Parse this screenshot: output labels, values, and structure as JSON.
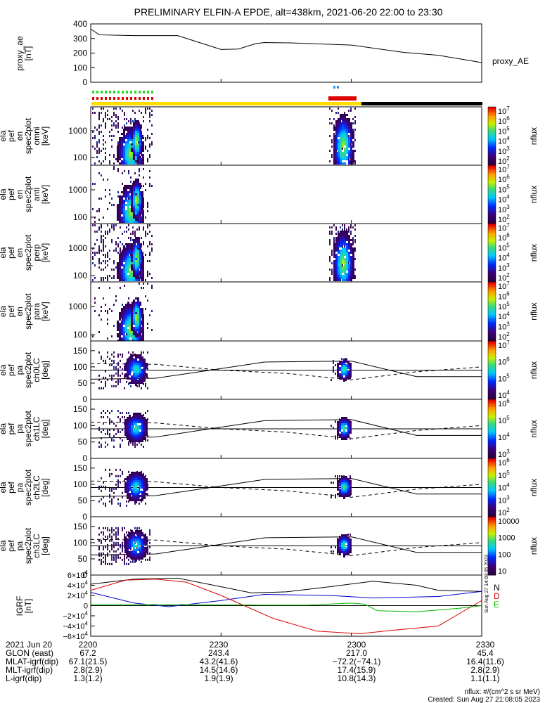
{
  "title": "PRELIMINARY ELFIN-A EPDE, alt=438km, 2021-06-20 22:00 to 23:30",
  "chart_data": [
    {
      "type": "line",
      "ylabel": "proxy_ae [nT]",
      "ylim": [
        0,
        400
      ],
      "yticks": [
        0,
        100,
        200,
        300,
        400
      ],
      "series": [
        {
          "name": "proxy_AE",
          "x": [
            0,
            2,
            10,
            20,
            30,
            34,
            38,
            40,
            46,
            60,
            72,
            80,
            90
          ],
          "values": [
            365,
            325,
            320,
            320,
            225,
            228,
            265,
            272,
            270,
            255,
            205,
            185,
            135
          ]
        }
      ]
    },
    {
      "type": "heatmap",
      "ylabel": "ela pef en spec2plot omni [keV]",
      "yticks": [
        "100",
        "1000"
      ],
      "zlabel": "nflux",
      "zticks": [
        "10^2",
        "10^3",
        "10^4",
        "10^5",
        "10^6",
        "10^7"
      ]
    },
    {
      "type": "heatmap",
      "ylabel": "ela pef en spec2plot anti [keV]",
      "yticks": [
        "100",
        "1000"
      ],
      "zlabel": "nflux",
      "zticks": [
        "10^2",
        "10^3",
        "10^4",
        "10^5",
        "10^6",
        "10^7"
      ]
    },
    {
      "type": "heatmap",
      "ylabel": "ela pef en spec2plot perp [keV]",
      "yticks": [
        "100",
        "1000"
      ],
      "zlabel": "nflux",
      "zticks": [
        "10^2",
        "10^3",
        "10^4",
        "10^5",
        "10^6",
        "10^7"
      ]
    },
    {
      "type": "heatmap",
      "ylabel": "ela pef en spec2plot para [keV]",
      "yticks": [
        "100",
        "1000"
      ],
      "zlabel": "nflux",
      "zticks": [
        "10^2",
        "10^3",
        "10^4",
        "10^5",
        "10^6",
        "10^7"
      ]
    },
    {
      "type": "heatmap",
      "ylabel": "ela pef pa spec2plot ch0LC [deg]",
      "ylim": [
        0,
        180
      ],
      "yticks": [
        0,
        50,
        100,
        150
      ],
      "zlabel": "nflux",
      "zticks": [
        "10^4",
        "10^5",
        "10^6",
        "10^7"
      ]
    },
    {
      "type": "heatmap",
      "ylabel": "ela pef pa spec2plot ch1LC [deg]",
      "ylim": [
        0,
        180
      ],
      "yticks": [
        0,
        50,
        100,
        150
      ],
      "zlabel": "nflux",
      "zticks": [
        "10^3",
        "10^4",
        "10^5",
        "10^6"
      ]
    },
    {
      "type": "heatmap",
      "ylabel": "ela pef pa spec2plot ch2LC [deg]",
      "ylim": [
        0,
        180
      ],
      "yticks": [
        0,
        50,
        100,
        150
      ],
      "zlabel": "nflux",
      "zticks": [
        "10^2",
        "10^3",
        "10^4",
        "10^5",
        "10^6"
      ]
    },
    {
      "type": "heatmap",
      "ylabel": "ela pef pa spec2plot ch3LC [deg]",
      "ylim": [
        0,
        180
      ],
      "yticks": [
        0,
        50,
        100,
        150
      ],
      "zlabel": "nflux",
      "zticks": [
        "10",
        "100",
        "1000",
        "10000"
      ]
    },
    {
      "type": "line",
      "ylabel": "IGRF [nT]",
      "ylim": [
        -60000,
        60000
      ],
      "yticks": [
        "−6×10^4",
        "−4×10^4",
        "−2×10^4",
        "0",
        "2×10^4",
        "4×10^4",
        "6×10^4"
      ],
      "series": [
        {
          "name": "N",
          "color": "#000000",
          "x": [
            0,
            10,
            20,
            30,
            37,
            45,
            55,
            65,
            75,
            80,
            90
          ],
          "values": [
            42000,
            52000,
            54000,
            37000,
            25000,
            27000,
            37000,
            48000,
            40000,
            30000,
            28000
          ]
        },
        {
          "name": "E",
          "color": "#0000cc",
          "x": [
            0,
            10,
            18,
            30,
            40,
            55,
            65,
            80,
            90
          ],
          "values": [
            26000,
            5000,
            -2000,
            10000,
            22000,
            20000,
            15000,
            18000,
            28000
          ]
        },
        {
          "name": "D",
          "color": "#dd0000",
          "x": [
            0,
            8,
            15,
            22,
            30,
            42,
            52,
            62,
            70,
            80,
            90
          ],
          "values": [
            30000,
            50000,
            52000,
            46000,
            20000,
            -25000,
            -50000,
            -55000,
            -48000,
            -40000,
            10000
          ]
        },
        {
          "name": "U",
          "color": "#00bb00",
          "x": [
            0,
            20,
            40,
            50,
            60,
            63,
            66,
            75,
            85,
            90
          ],
          "values": [
            2000,
            2000,
            1000,
            1000,
            5000,
            3000,
            -10000,
            -12000,
            -5000,
            0
          ]
        }
      ]
    }
  ],
  "xticks": [
    "2200",
    "2230",
    "2300",
    "2330"
  ],
  "ephemeris": {
    "labels": [
      "2021 Jun 20",
      "GLON (east)",
      "MLAT-igrf(dip)",
      "MLT-igrf(dip)",
      "L-igrf(dip)"
    ],
    "rows": [
      [
        "2200",
        "2230",
        "2300",
        "2330"
      ],
      [
        "67.2",
        "243.4",
        "217.0",
        "45.4"
      ],
      [
        "67.1(21.5)",
        "43.2(41.6)",
        "−72.2(−74.1)",
        "16.4(11.6)"
      ],
      [
        "2.8(2.9)",
        "14.5(14.6)",
        "17.4(15.9)",
        "2.8(2.9)"
      ],
      [
        "1.3(1.2)",
        "1.9(1.9)",
        "10.8(14.3)",
        "1.1(1.1)"
      ]
    ]
  },
  "footnote": "nflux: #/(cm^2 s sr MeV)",
  "created": "Created: Sun Aug 27 21:08:05 2023",
  "side_stamp": "Sun Aug 27 14:08:05 2023",
  "legend_proxy": "proxy_AE",
  "legend_igrf": [
    "N",
    "D",
    "E"
  ],
  "colors": {
    "N": "#000000",
    "E": "#0000cc",
    "D": "#dd0000",
    "U": "#00bb00",
    "state_yellow": "#ffdd00",
    "state_black": "#000000",
    "red": "#dd0000",
    "green": "#22dd22",
    "blue": "#2299ff"
  }
}
